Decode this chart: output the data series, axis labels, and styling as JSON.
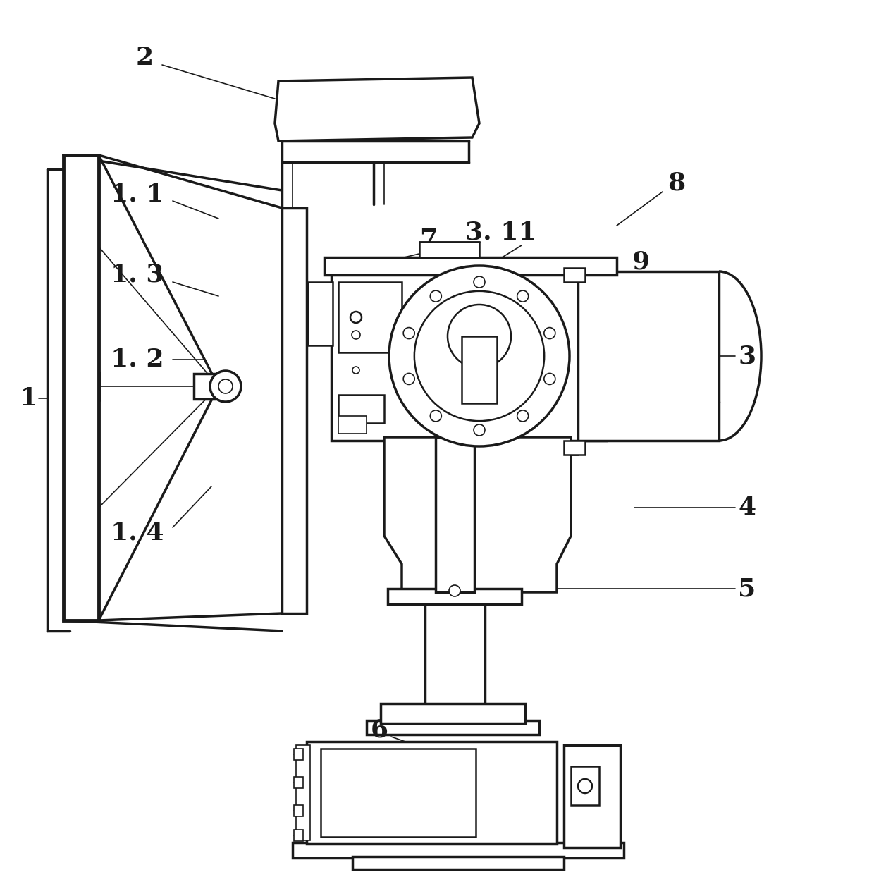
{
  "fig_width": 12.4,
  "fig_height": 12.61,
  "bg_color": "#ffffff",
  "lc": "#1a1a1a",
  "lw": 1.8,
  "lw2": 2.5,
  "lw1": 1.2,
  "lw3": 3.5
}
